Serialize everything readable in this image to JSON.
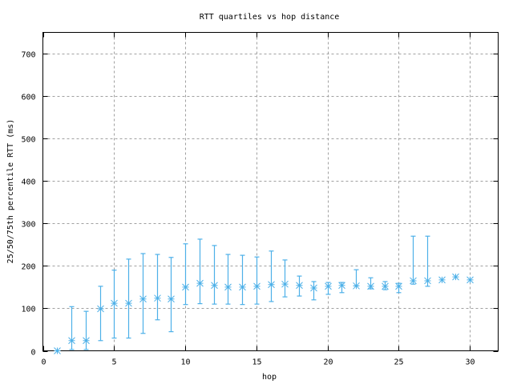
{
  "chart_data": {
    "type": "scatter",
    "title": "RTT quartiles vs hop distance",
    "xlabel": "hop",
    "ylabel": "25/50/75th percentile RTT (ms)",
    "xlim": [
      0,
      32
    ],
    "ylim": [
      0,
      750
    ],
    "xticks": [
      0,
      5,
      10,
      15,
      20,
      25,
      30
    ],
    "yticks": [
      0,
      100,
      200,
      300,
      400,
      500,
      600,
      700
    ],
    "grid": true,
    "color": "#4db0e8",
    "series": [
      {
        "name": "RTT quartiles",
        "hop": [
          1,
          2,
          3,
          4,
          5,
          6,
          7,
          8,
          9,
          10,
          11,
          12,
          13,
          14,
          15,
          16,
          17,
          18,
          19,
          20,
          21,
          22,
          23,
          24,
          25,
          26,
          27,
          28,
          29,
          30
        ],
        "median": [
          0,
          24,
          24,
          99,
          112,
          112,
          122,
          124,
          122,
          150,
          159,
          154,
          150,
          150,
          152,
          156,
          157,
          154,
          148,
          152,
          154,
          153,
          152,
          152,
          152,
          165,
          165,
          167,
          174,
          167
        ],
        "p25": [
          0,
          3,
          3,
          24,
          30,
          30,
          41,
          73,
          45,
          109,
          111,
          110,
          110,
          109,
          110,
          116,
          127,
          129,
          120,
          133,
          137,
          153,
          146,
          144,
          137,
          157,
          152,
          167,
          174,
          167
        ],
        "p75": [
          0,
          104,
          93,
          152,
          190,
          216,
          229,
          227,
          220,
          252,
          263,
          248,
          227,
          225,
          221,
          235,
          214,
          176,
          163,
          161,
          161,
          191,
          172,
          163,
          159,
          270,
          270,
          167,
          174,
          167
        ]
      }
    ]
  }
}
